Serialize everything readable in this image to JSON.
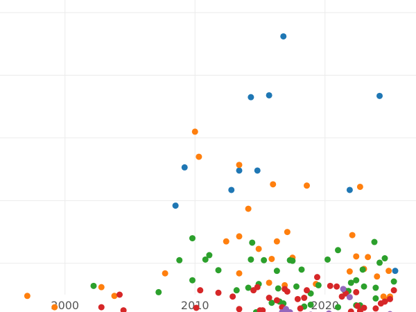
{
  "chart_data": {
    "type": "scatter",
    "title": "",
    "xlabel": "",
    "ylabel": "",
    "xlim": [
      1995,
      2027
    ],
    "ylim": [
      0.5,
      5.2
    ],
    "xticks": [
      2000,
      2010,
      2020
    ],
    "xtick_labels": [
      "2000",
      "2010",
      "2020"
    ],
    "yticks": [
      1,
      2,
      3,
      4,
      5
    ],
    "grid": true,
    "legend": "none",
    "series": [
      {
        "color": "#1f77b4",
        "points": [
          [
            2016.8,
            4.62
          ],
          [
            2014.3,
            3.65
          ],
          [
            2015.7,
            3.68
          ],
          [
            2024.2,
            3.67
          ],
          [
            2009.2,
            2.53
          ],
          [
            2013.4,
            2.48
          ],
          [
            2014.8,
            2.48
          ],
          [
            2008.5,
            1.92
          ],
          [
            2012.8,
            2.17
          ],
          [
            2021.9,
            2.17
          ],
          [
            2025.4,
            0.88
          ]
        ]
      },
      {
        "color": "#ff7f0e",
        "points": [
          [
            1997.1,
            0.48
          ],
          [
            1999.2,
            0.3
          ],
          [
            2002.8,
            0.62
          ],
          [
            2003.8,
            0.48
          ],
          [
            2007.7,
            0.84
          ],
          [
            2010.0,
            3.1
          ],
          [
            2010.3,
            2.7
          ],
          [
            2012.4,
            1.35
          ],
          [
            2013.4,
            1.43
          ],
          [
            2013.4,
            0.84
          ],
          [
            2013.4,
            2.57
          ],
          [
            2014.1,
            1.87
          ],
          [
            2014.9,
            1.23
          ],
          [
            2015.7,
            0.69
          ],
          [
            2015.9,
            1.07
          ],
          [
            2016.0,
            2.26
          ],
          [
            2016.3,
            1.35
          ],
          [
            2016.9,
            0.65
          ],
          [
            2017.1,
            1.5
          ],
          [
            2017.5,
            1.09
          ],
          [
            2018.6,
            2.24
          ],
          [
            2019.3,
            0.67
          ],
          [
            2021.9,
            0.87
          ],
          [
            2022.1,
            1.45
          ],
          [
            2022.4,
            1.11
          ],
          [
            2022.7,
            2.22
          ],
          [
            2023.0,
            0.91
          ],
          [
            2023.3,
            1.1
          ],
          [
            2024.0,
            0.79
          ],
          [
            2024.5,
            0.47
          ],
          [
            2024.9,
            0.88
          ],
          [
            2025.0,
            0.47
          ],
          [
            2024.7,
            0.42
          ]
        ]
      },
      {
        "color": "#2ca02c",
        "points": [
          [
            2002.2,
            0.64
          ],
          [
            2007.2,
            0.54
          ],
          [
            2008.8,
            1.05
          ],
          [
            2009.8,
            0.73
          ],
          [
            2009.8,
            1.4
          ],
          [
            2010.8,
            1.06
          ],
          [
            2011.1,
            1.13
          ],
          [
            2011.8,
            0.89
          ],
          [
            2013.2,
            0.57
          ],
          [
            2014.1,
            0.61
          ],
          [
            2014.3,
            1.06
          ],
          [
            2014.4,
            1.33
          ],
          [
            2014.7,
            0.22
          ],
          [
            2014.9,
            0.67
          ],
          [
            2015.3,
            1.05
          ],
          [
            2015.9,
            0.37
          ],
          [
            2016.3,
            0.88
          ],
          [
            2016.4,
            0.6
          ],
          [
            2016.5,
            0.39
          ],
          [
            2016.8,
            0.36
          ],
          [
            2017.3,
            1.05
          ],
          [
            2017.5,
            1.04
          ],
          [
            2017.8,
            0.63
          ],
          [
            2018.2,
            0.9
          ],
          [
            2018.4,
            0.31
          ],
          [
            2018.9,
            0.52
          ],
          [
            2018.9,
            0.34
          ],
          [
            2019.5,
            0.65
          ],
          [
            2020.2,
            1.06
          ],
          [
            2021.0,
            1.21
          ],
          [
            2021.0,
            0.3
          ],
          [
            2021.5,
            0.57
          ],
          [
            2021.8,
            0.56
          ],
          [
            2022.0,
            0.69
          ],
          [
            2022.4,
            0.73
          ],
          [
            2022.4,
            0.33
          ],
          [
            2022.7,
            0.33
          ],
          [
            2022.9,
            0.9
          ],
          [
            2023.0,
            0.63
          ],
          [
            2023.8,
            1.34
          ],
          [
            2023.9,
            0.44
          ],
          [
            2023.9,
            0.61
          ],
          [
            2024.2,
            1.01
          ],
          [
            2024.6,
            1.08
          ],
          [
            2025.3,
            0.71
          ]
        ]
      },
      {
        "color": "#d62728",
        "points": [
          [
            2002.8,
            0.3
          ],
          [
            2004.2,
            0.5
          ],
          [
            2004.5,
            0.25
          ],
          [
            2010.1,
            0.29
          ],
          [
            2010.4,
            0.57
          ],
          [
            2011.8,
            0.53
          ],
          [
            2012.9,
            0.47
          ],
          [
            2013.4,
            0.27
          ],
          [
            2014.5,
            0.57
          ],
          [
            2014.8,
            0.62
          ],
          [
            2015.0,
            0.25
          ],
          [
            2015.2,
            0.25
          ],
          [
            2015.7,
            0.45
          ],
          [
            2016.3,
            0.41
          ],
          [
            2016.7,
            0.3
          ],
          [
            2016.9,
            0.59
          ],
          [
            2017.1,
            0.55
          ],
          [
            2017.9,
            0.43
          ],
          [
            2018.1,
            0.28
          ],
          [
            2018.4,
            0.45
          ],
          [
            2018.6,
            0.57
          ],
          [
            2019.4,
            0.78
          ],
          [
            2020.4,
            0.64
          ],
          [
            2020.9,
            0.63
          ],
          [
            2021.2,
            0.12
          ],
          [
            2021.3,
            0.47
          ],
          [
            2021.6,
            0.52
          ],
          [
            2022.0,
            0.23
          ],
          [
            2022.4,
            0.54
          ],
          [
            2022.5,
            0.32
          ],
          [
            2022.7,
            0.24
          ],
          [
            2023.0,
            0.29
          ],
          [
            2023.9,
            0.28
          ],
          [
            2024.3,
            0.36
          ],
          [
            2024.6,
            0.39
          ],
          [
            2025.0,
            0.43
          ],
          [
            2025.3,
            0.57
          ]
        ]
      },
      {
        "color": "#9467bd",
        "points": [
          [
            2016.7,
            0.22
          ],
          [
            2017.0,
            0.27
          ],
          [
            2017.3,
            0.22
          ],
          [
            2018.9,
            0.18
          ],
          [
            2020.3,
            0.2
          ],
          [
            2021.4,
            0.59
          ],
          [
            2021.9,
            0.46
          ],
          [
            2025.0,
            0.19
          ]
        ]
      }
    ]
  }
}
